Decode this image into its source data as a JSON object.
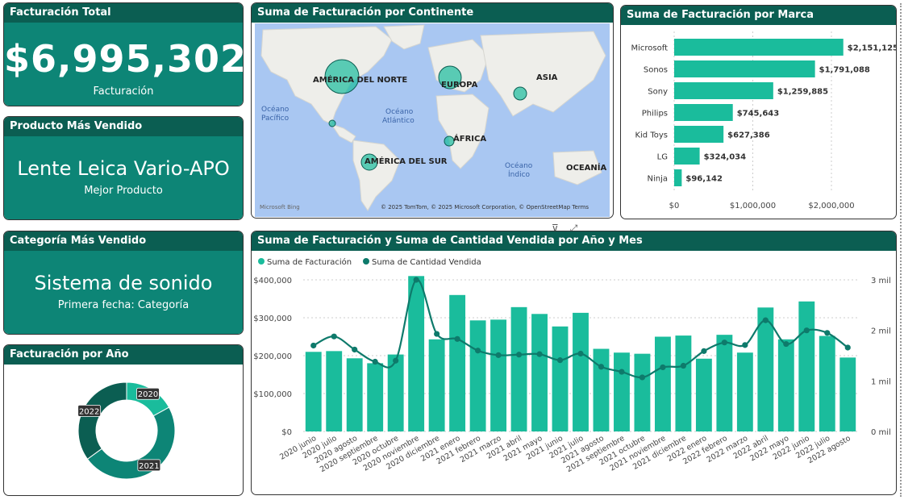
{
  "kpi_total": {
    "title": "Facturación Total",
    "value": "$6,995,302",
    "sub": "Facturación"
  },
  "kpi_product": {
    "title": "Producto Más Vendido",
    "value": "Lente Leica Vario-APO",
    "sub": "Mejor Producto"
  },
  "kpi_category": {
    "title": "Categoría Más Vendido",
    "value": "Sistema de sonido",
    "sub": "Primera fecha: Categoría"
  },
  "map_card": {
    "title": "Suma de Facturación por Continente",
    "labels": [
      "AMÉRICA DEL NORTE",
      "EUROPA",
      "ASIA",
      "ÁFRICA",
      "AMÉRICA DEL SUR",
      "OCEANÍA"
    ],
    "ocean_pacific": [
      "Océano",
      "Pacífico"
    ],
    "ocean_atlantic": [
      "Océano",
      "Atlántico"
    ],
    "ocean_indian": [
      "Océano",
      "Índico"
    ],
    "bing": "Microsoft Bing",
    "copyright": "© 2025 TomTom, © 2025 Microsoft Corporation, © OpenStreetMap  Terms"
  },
  "brand_card": {
    "title": "Suma de Facturación por Marca"
  },
  "year_card": {
    "title": "Facturación por Año"
  },
  "combo_card": {
    "title": "Suma de Facturación y Suma de Cantidad Vendida por Año y Mes"
  },
  "colors": {
    "teal": "#1abc9c",
    "dark": "#0b5e52",
    "mid": "#0d8576",
    "line": "#0e7a6b"
  },
  "chart_data": [
    {
      "type": "bar",
      "title": "Suma de Facturación por Marca",
      "orientation": "horizontal",
      "categories": [
        "Microsoft",
        "Sonos",
        "Sony",
        "Philips",
        "Kid Toys",
        "LG",
        "Ninja"
      ],
      "values": [
        2151125,
        1791088,
        1259885,
        745643,
        627386,
        324034,
        96142
      ],
      "value_labels": [
        "$2,151,125",
        "$1,791,088",
        "$1,259,885",
        "$745,643",
        "$627,386",
        "$324,034",
        "$96,142"
      ],
      "xticks": [
        0,
        1000000,
        2000000
      ],
      "xtick_labels": [
        "$0",
        "$1,000,000",
        "$2,000,000"
      ],
      "xlim": [
        0,
        2400000
      ]
    },
    {
      "type": "pie",
      "title": "Facturación por Año",
      "donut": true,
      "labels": [
        "2020",
        "2021",
        "2022"
      ],
      "values": [
        17,
        48,
        35
      ],
      "colors": [
        "#1abc9c",
        "#0d8576",
        "#0b5e52"
      ]
    },
    {
      "type": "bar",
      "title": "Suma de Facturación y Suma de Cantidad Vendida por Año y Mes",
      "legend": [
        "Suma de Facturación",
        "Suma de Cantidad Vendida"
      ],
      "legend_position": "top-left",
      "categories": [
        "2020 junio",
        "2020 julio",
        "2020 agosto",
        "2020 septiembre",
        "2020 octubre",
        "2020 noviembre",
        "2020 diciembre",
        "2021 enero",
        "2021 febrero",
        "2021 marzo",
        "2021 abril",
        "2021 mayo",
        "2021 junio",
        "2021 julio",
        "2021 agosto",
        "2021 septiembre",
        "2021 octubre",
        "2021 noviembre",
        "2021 diciembre",
        "2022 enero",
        "2022 febrero",
        "2022 marzo",
        "2022 abril",
        "2022 mayo",
        "2022 junio",
        "2022 julio",
        "2022 agosto"
      ],
      "series": [
        {
          "name": "Suma de Facturación",
          "kind": "bar",
          "axis": "left",
          "values": [
            210000,
            212000,
            193000,
            180000,
            203000,
            410000,
            243000,
            360000,
            293000,
            295000,
            328000,
            310000,
            277000,
            313000,
            218000,
            208000,
            205000,
            250000,
            253000,
            192000,
            255000,
            208000,
            327000,
            243000,
            343000,
            252000,
            195000
          ]
        },
        {
          "name": "Suma de Cantidad Vendida",
          "kind": "line",
          "axis": "right",
          "values": [
            1700,
            1880,
            1620,
            1380,
            1400,
            3000,
            1930,
            1830,
            1600,
            1510,
            1520,
            1530,
            1410,
            1540,
            1280,
            1180,
            1070,
            1270,
            1300,
            1590,
            1760,
            1710,
            2200,
            1730,
            2000,
            1950,
            1660
          ]
        }
      ],
      "yticks_left": [
        "$0",
        "$100,000",
        "$200,000",
        "$300,000",
        "$400,000"
      ],
      "ylim_left": [
        0,
        400000
      ],
      "yticks_right": [
        "0 mil",
        "1 mil",
        "2 mil",
        "3 mil"
      ],
      "ylim_right": [
        0,
        3000
      ],
      "grid": true
    }
  ]
}
